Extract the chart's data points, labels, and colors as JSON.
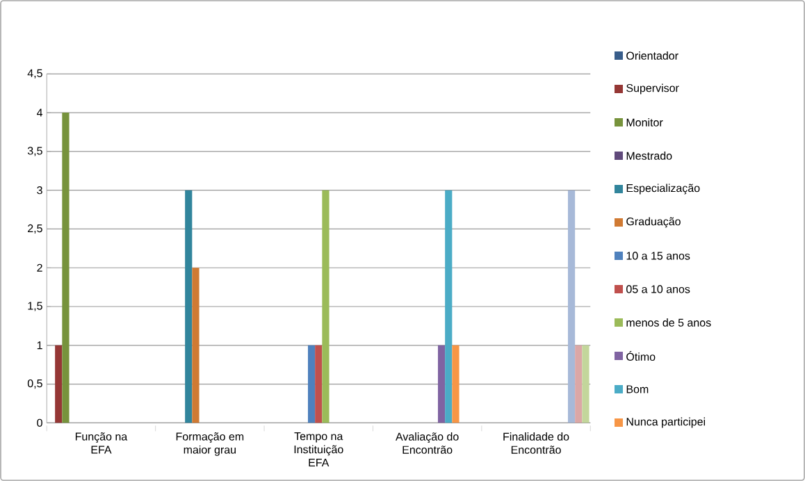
{
  "chart_data": {
    "type": "bar",
    "categories": [
      "Função na EFA",
      "Formação em maior grau",
      "Tempo na Instituição EFA",
      "Avaliação do Encontrão",
      "Finalidade do Encontrão"
    ],
    "ylim": [
      0,
      4.5
    ],
    "yticks": [
      0,
      {
        "value": 0.5,
        "label": "0,5"
      },
      1,
      {
        "value": 1.5,
        "label": "1,5"
      },
      2,
      {
        "value": 2.5,
        "label": "2,5"
      },
      3,
      {
        "value": 3.5,
        "label": "3,5"
      },
      4,
      {
        "value": 4.5,
        "label": "4,5"
      }
    ],
    "grid": "y",
    "legend": "right",
    "series": [
      {
        "name": "Orientador",
        "color": "#385d8a",
        "values": [
          null,
          null,
          null,
          null,
          null
        ]
      },
      {
        "name": "Supervisor",
        "color": "#953735",
        "values": [
          1,
          null,
          null,
          null,
          null
        ]
      },
      {
        "name": "Monitor",
        "color": "#77933c",
        "values": [
          4,
          null,
          null,
          null,
          null
        ]
      },
      {
        "name": "Mestrado",
        "color": "#604a7b",
        "values": [
          null,
          null,
          null,
          null,
          null
        ]
      },
      {
        "name": "Especialização",
        "color": "#31859c",
        "values": [
          null,
          3,
          null,
          null,
          null
        ]
      },
      {
        "name": "Graduação",
        "color": "#d07a33",
        "values": [
          null,
          2,
          null,
          null,
          null
        ]
      },
      {
        "name": "10 a 15 anos",
        "color": "#4f81bd",
        "values": [
          null,
          null,
          1,
          null,
          null
        ]
      },
      {
        "name": "05 a 10 anos",
        "color": "#c0504d",
        "values": [
          null,
          null,
          1,
          null,
          null
        ]
      },
      {
        "name": "menos de 5 anos",
        "color": "#9bbb59",
        "values": [
          null,
          null,
          3,
          null,
          null
        ]
      },
      {
        "name": "Ótimo",
        "color": "#8064a2",
        "values": [
          null,
          null,
          null,
          1,
          null
        ]
      },
      {
        "name": "Bom",
        "color": "#4bacc6",
        "values": [
          null,
          null,
          null,
          3,
          null
        ]
      },
      {
        "name": "Nunca participei",
        "color": "#f79646",
        "values": [
          null,
          null,
          null,
          1,
          null
        ]
      },
      {
        "color": "#a7b9d8",
        "values": [
          null,
          null,
          null,
          null,
          3
        ]
      },
      {
        "color": "#dba7a6",
        "values": [
          null,
          null,
          null,
          null,
          1
        ]
      },
      {
        "color": "#c3d69b",
        "values": [
          null,
          null,
          null,
          null,
          1
        ]
      }
    ]
  }
}
